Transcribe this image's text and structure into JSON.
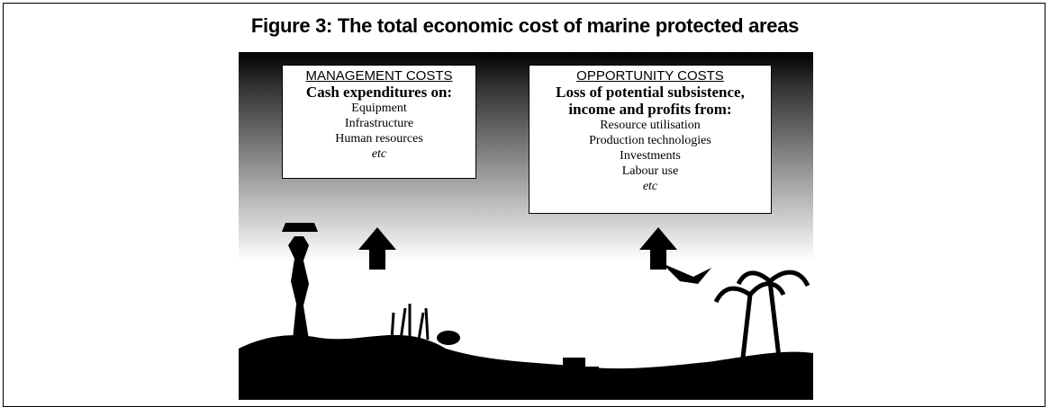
{
  "title": "Figure 3: The total economic cost of marine protected areas",
  "boxes": [
    {
      "heading": "MANAGEMENT COSTS",
      "subheading": "Cash expenditures on:",
      "items": [
        "Equipment",
        "Infrastructure",
        "Human resources"
      ],
      "note": "etc"
    },
    {
      "heading": "OPPORTUNITY COSTS",
      "subheading": "Loss of potential subsistence, income and profits from:",
      "items": [
        "Resource utilisation",
        "Production technologies",
        "Investments",
        "Labour use"
      ],
      "note": "etc"
    }
  ]
}
